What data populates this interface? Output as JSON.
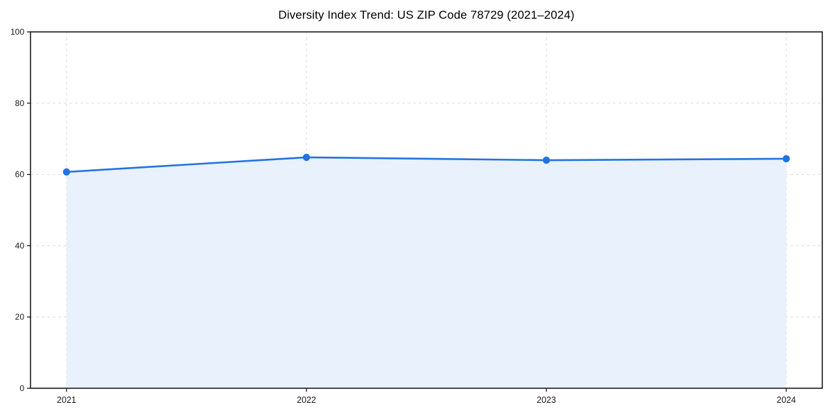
{
  "chart_data": {
    "type": "area",
    "title": "Diversity Index Trend: US ZIP Code 78729 (2021–2024)",
    "x": [
      "2021",
      "2022",
      "2023",
      "2024"
    ],
    "series": [
      {
        "name": "Diversity Index",
        "values": [
          60.7,
          64.8,
          64.0,
          64.4
        ]
      }
    ],
    "xlabel": "",
    "ylabel": "",
    "ylim": [
      0,
      100
    ],
    "yticks": [
      0,
      20,
      40,
      60,
      80,
      100
    ],
    "grid": true,
    "grid_style": "dashed",
    "legend_position": "none",
    "marker": "circle",
    "colors": {
      "line": "#2273e2",
      "marker": "#2273e2",
      "area_fill": "#e9f1fc",
      "gridline": "#dcdcdc",
      "spine": "#1a1a1a",
      "tick_label": "#1a1a1a",
      "title": "#000000",
      "background": "#ffffff"
    }
  }
}
